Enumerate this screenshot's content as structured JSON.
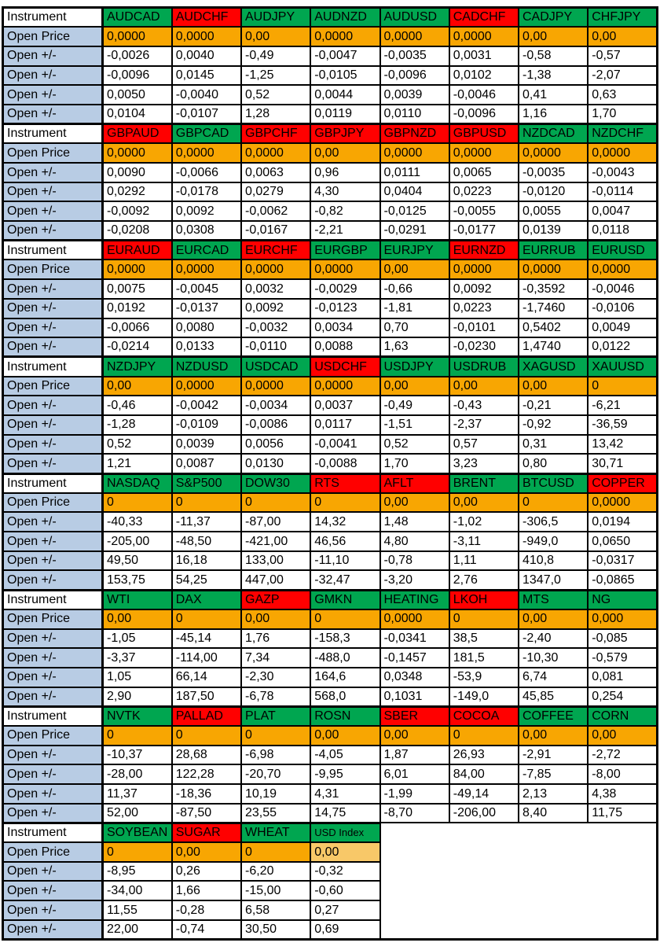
{
  "table": {
    "row_labels": {
      "instrument": "Instrument",
      "open_price": "Open Price",
      "open_change": "Open +/-"
    },
    "colors": {
      "green": "#00A650",
      "red": "#FF0000",
      "orange": "#F8A602",
      "orange_light": "#F8C868",
      "label_blue": "#B8CCE4",
      "border": "#000000",
      "text": "#000000"
    },
    "blocks": [
      {
        "instruments": [
          {
            "name": "AUDCAD",
            "color": "green",
            "open_price": "0,0000",
            "changes": [
              "-0,0026",
              "-0,0096",
              "0,0050",
              "0,0104"
            ]
          },
          {
            "name": "AUDCHF",
            "color": "red",
            "open_price": "0,0000",
            "changes": [
              "0,0040",
              "0,0145",
              "-0,0040",
              "-0,0107"
            ]
          },
          {
            "name": "AUDJPY",
            "color": "green",
            "open_price": "0,00",
            "changes": [
              "-0,49",
              "-1,25",
              "0,52",
              "1,28"
            ]
          },
          {
            "name": "AUDNZD",
            "color": "green",
            "open_price": "0,0000",
            "changes": [
              "-0,0047",
              "-0,0105",
              "0,0044",
              "0,0119"
            ]
          },
          {
            "name": "AUDUSD",
            "color": "green",
            "open_price": "0,0000",
            "changes": [
              "-0,0035",
              "-0,0096",
              "0,0039",
              "0,0110"
            ]
          },
          {
            "name": "CADCHF",
            "color": "red",
            "open_price": "0,0000",
            "changes": [
              "0,0031",
              "0,0102",
              "-0,0046",
              "-0,0096"
            ]
          },
          {
            "name": "CADJPY",
            "color": "green",
            "open_price": "0,00",
            "changes": [
              "-0,58",
              "-1,38",
              "0,41",
              "1,16"
            ]
          },
          {
            "name": "CHFJPY",
            "color": "green",
            "open_price": "0,00",
            "changes": [
              "-0,57",
              "-2,07",
              "0,63",
              "1,70"
            ]
          }
        ]
      },
      {
        "instruments": [
          {
            "name": "GBPAUD",
            "color": "red",
            "open_price": "0,0000",
            "changes": [
              "0,0090",
              "0,0292",
              "-0,0092",
              "-0,0208"
            ]
          },
          {
            "name": "GBPCAD",
            "color": "green",
            "open_price": "0,0000",
            "changes": [
              "-0,0066",
              "-0,0178",
              "0,0092",
              "0,0308"
            ]
          },
          {
            "name": "GBPCHF",
            "color": "red",
            "open_price": "0,0000",
            "changes": [
              "0,0063",
              "0,0279",
              "-0,0062",
              "-0,0167"
            ]
          },
          {
            "name": "GBPJPY",
            "color": "red",
            "open_price": "0,00",
            "changes": [
              "0,96",
              "4,30",
              "-0,82",
              "-2,21"
            ]
          },
          {
            "name": "GBPNZD",
            "color": "red",
            "open_price": "0,0000",
            "changes": [
              "0,0111",
              "0,0404",
              "-0,0125",
              "-0,0291"
            ]
          },
          {
            "name": "GBPUSD",
            "color": "red",
            "open_price": "0,0000",
            "changes": [
              "0,0065",
              "0,0223",
              "-0,0055",
              "-0,0177"
            ]
          },
          {
            "name": "NZDCAD",
            "color": "green",
            "open_price": "0,0000",
            "changes": [
              "-0,0035",
              "-0,0120",
              "0,0055",
              "0,0139"
            ]
          },
          {
            "name": "NZDCHF",
            "color": "green",
            "open_price": "0,0000",
            "changes": [
              "-0,0043",
              "-0,0114",
              "0,0047",
              "0,0118"
            ]
          }
        ]
      },
      {
        "instruments": [
          {
            "name": "EURAUD",
            "color": "red",
            "open_price": "0,0000",
            "changes": [
              "0,0075",
              "0,0192",
              "-0,0066",
              "-0,0214"
            ]
          },
          {
            "name": "EURCAD",
            "color": "green",
            "open_price": "0,0000",
            "changes": [
              "-0,0045",
              "-0,0137",
              "0,0080",
              "0,0133"
            ]
          },
          {
            "name": "EURCHF",
            "color": "red",
            "open_price": "0,0000",
            "changes": [
              "0,0032",
              "0,0092",
              "-0,0032",
              "-0,0110"
            ]
          },
          {
            "name": "EURGBP",
            "color": "green",
            "open_price": "0,0000",
            "changes": [
              "-0,0029",
              "-0,0123",
              "0,0034",
              "0,0088"
            ]
          },
          {
            "name": "EURJPY",
            "color": "green",
            "open_price": "0,00",
            "changes": [
              "-0,66",
              "-1,81",
              "0,70",
              "1,63"
            ]
          },
          {
            "name": "EURNZD",
            "color": "red",
            "open_price": "0,0000",
            "changes": [
              "0,0092",
              "0,0223",
              "-0,0101",
              "-0,0230"
            ]
          },
          {
            "name": "EURRUB",
            "color": "green",
            "open_price": "0,0000",
            "changes": [
              "-0,3592",
              "-1,7460",
              "0,5402",
              "1,4740"
            ]
          },
          {
            "name": "EURUSD",
            "color": "green",
            "open_price": "0,0000",
            "changes": [
              "-0,0046",
              "-0,0106",
              "0,0049",
              "0,0122"
            ]
          }
        ]
      },
      {
        "instruments": [
          {
            "name": "NZDJPY",
            "color": "green",
            "open_price": "0,00",
            "changes": [
              "-0,46",
              "-1,28",
              "0,52",
              "1,21"
            ]
          },
          {
            "name": "NZDUSD",
            "color": "green",
            "open_price": "0,0000",
            "changes": [
              "-0,0042",
              "-0,0109",
              "0,0039",
              "0,0087"
            ]
          },
          {
            "name": "USDCAD",
            "color": "green",
            "open_price": "0,0000",
            "changes": [
              "-0,0034",
              "-0,0086",
              "0,0056",
              "0,0130"
            ]
          },
          {
            "name": "USDCHF",
            "color": "red",
            "open_price": "0,0000",
            "changes": [
              "0,0037",
              "0,0117",
              "-0,0041",
              "-0,0088"
            ]
          },
          {
            "name": "USDJPY",
            "color": "green",
            "open_price": "0,00",
            "changes": [
              "-0,49",
              "-1,51",
              "0,52",
              "1,70"
            ]
          },
          {
            "name": "USDRUB",
            "color": "green",
            "open_price": "0,00",
            "changes": [
              "-0,43",
              "-2,37",
              "0,57",
              "3,23"
            ]
          },
          {
            "name": "XAGUSD",
            "color": "green",
            "open_price": "0,00",
            "changes": [
              "-0,21",
              "-0,92",
              "0,31",
              "0,80"
            ]
          },
          {
            "name": "XAUUSD",
            "color": "green",
            "open_price": "0",
            "changes": [
              "-6,21",
              "-36,59",
              "13,42",
              "30,71"
            ]
          }
        ]
      },
      {
        "instruments": [
          {
            "name": "NASDAQ",
            "color": "green",
            "open_price": "0",
            "changes": [
              "-40,33",
              "-205,00",
              "49,50",
              "153,75"
            ]
          },
          {
            "name": "S&P500",
            "color": "green",
            "open_price": "0",
            "changes": [
              "-11,37",
              "-48,50",
              "16,18",
              "54,25"
            ]
          },
          {
            "name": "DOW30",
            "color": "green",
            "open_price": "0",
            "changes": [
              "-87,00",
              "-421,00",
              "133,00",
              "447,00"
            ]
          },
          {
            "name": "RTS",
            "color": "red",
            "open_price": "0",
            "changes": [
              "14,32",
              "46,56",
              "-11,10",
              "-32,47"
            ]
          },
          {
            "name": "AFLT",
            "color": "red",
            "open_price": "0,00",
            "changes": [
              "1,48",
              "4,80",
              "-0,78",
              "-3,20"
            ]
          },
          {
            "name": "BRENT",
            "color": "green",
            "open_price": "0,00",
            "changes": [
              "-1,02",
              "-3,11",
              "1,11",
              "2,76"
            ]
          },
          {
            "name": "BTCUSD",
            "color": "green",
            "open_price": "0",
            "changes": [
              "-306,5",
              "-949,0",
              "410,8",
              "1347,0"
            ]
          },
          {
            "name": "COPPER",
            "color": "red",
            "open_price": "0,0000",
            "changes": [
              "0,0194",
              "0,0650",
              "-0,0317",
              "-0,0865"
            ]
          }
        ]
      },
      {
        "instruments": [
          {
            "name": "WTI",
            "color": "green",
            "open_price": "0,00",
            "changes": [
              "-1,05",
              "-3,37",
              "1,05",
              "2,90"
            ]
          },
          {
            "name": "DAX",
            "color": "green",
            "open_price": "0",
            "changes": [
              "-45,14",
              "-114,00",
              "66,14",
              "187,50"
            ]
          },
          {
            "name": "GAZP",
            "color": "red",
            "open_price": "0,00",
            "changes": [
              "1,76",
              "7,34",
              "-2,30",
              "-6,78"
            ]
          },
          {
            "name": "GMKN",
            "color": "green",
            "open_price": "0",
            "changes": [
              "-158,3",
              "-488,0",
              "164,6",
              "568,0"
            ]
          },
          {
            "name": "HEATING",
            "color": "green",
            "open_price": "0,0000",
            "changes": [
              "-0,0341",
              "-0,1457",
              "0,0348",
              "0,1031"
            ]
          },
          {
            "name": "LKOH",
            "color": "red",
            "open_price": "0",
            "changes": [
              "38,5",
              "181,5",
              "-53,9",
              "-149,0"
            ]
          },
          {
            "name": "MTS",
            "color": "green",
            "open_price": "0,00",
            "changes": [
              "-2,40",
              "-10,30",
              "6,74",
              "45,85"
            ]
          },
          {
            "name": "NG",
            "color": "green",
            "open_price": "0,000",
            "changes": [
              "-0,085",
              "-0,579",
              "0,081",
              "0,254"
            ]
          }
        ]
      },
      {
        "instruments": [
          {
            "name": "NVTK",
            "color": "green",
            "open_price": "0",
            "changes": [
              "-10,37",
              "-28,00",
              "11,37",
              "52,00"
            ]
          },
          {
            "name": "PALLAD",
            "color": "red",
            "open_price": "0",
            "changes": [
              "28,68",
              "122,28",
              "-18,36",
              "-87,50"
            ]
          },
          {
            "name": "PLAT",
            "color": "green",
            "open_price": "0",
            "changes": [
              "-6,98",
              "-20,70",
              "10,19",
              "23,55"
            ]
          },
          {
            "name": "ROSN",
            "color": "green",
            "open_price": "0,00",
            "changes": [
              "-4,05",
              "-9,95",
              "4,31",
              "14,75"
            ]
          },
          {
            "name": "SBER",
            "color": "red",
            "open_price": "0,00",
            "changes": [
              "1,87",
              "6,01",
              "-1,99",
              "-8,70"
            ]
          },
          {
            "name": "COCOA",
            "color": "red",
            "open_price": "0",
            "changes": [
              "26,93",
              "84,00",
              "-49,14",
              "-206,00"
            ]
          },
          {
            "name": "COFFEE",
            "color": "green",
            "open_price": "0,00",
            "changes": [
              "-2,91",
              "-7,85",
              "2,13",
              "8,40"
            ]
          },
          {
            "name": "CORN",
            "color": "green",
            "open_price": "0,00",
            "changes": [
              "-2,72",
              "-8,00",
              "4,38",
              "11,75"
            ]
          }
        ]
      },
      {
        "instruments": [
          {
            "name": "SOYBEAN",
            "color": "green",
            "open_price": "0",
            "changes": [
              "-8,95",
              "-34,00",
              "11,55",
              "22,00"
            ]
          },
          {
            "name": "SUGAR",
            "color": "red",
            "open_price": "0,00",
            "changes": [
              "0,26",
              "1,66",
              "-0,28",
              "-0,74"
            ]
          },
          {
            "name": "WHEAT",
            "color": "green",
            "open_price": "0",
            "changes": [
              "-6,20",
              "-15,00",
              "6,58",
              "30,50"
            ]
          },
          {
            "name": "USD Index",
            "color": "green",
            "small_font": true,
            "open_price": "0,00",
            "open_price_light": true,
            "changes": [
              "-0,32",
              "-0,60",
              "0,27",
              "0,69"
            ]
          }
        ]
      }
    ]
  }
}
